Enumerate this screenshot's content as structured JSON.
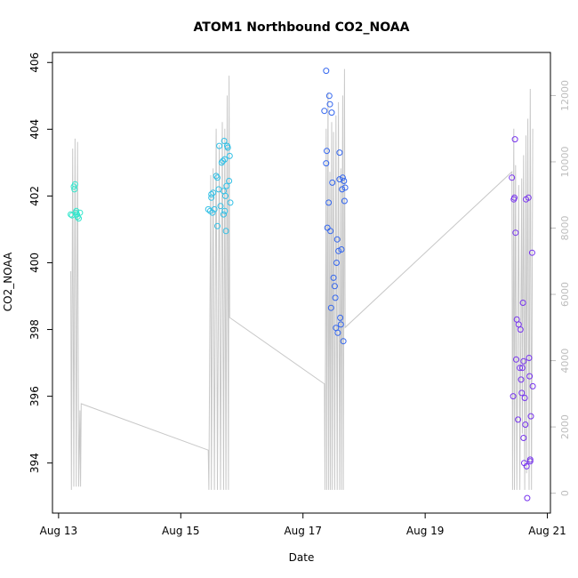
{
  "chart_data": {
    "type": "scatter",
    "title": "ATOM1 Northbound CO2_NOAA",
    "xlabel": "Date",
    "ylabel": "CO2_NOAA",
    "x_unit": "days (August)",
    "xlim": [
      12.9,
      21.05
    ],
    "ylim": [
      392.5,
      406.3
    ],
    "x_ticks": [
      13,
      15,
      17,
      19,
      21
    ],
    "x_tick_labels": [
      "Aug 13",
      "Aug 15",
      "Aug 17",
      "Aug 19",
      "Aug 21"
    ],
    "y_ticks": [
      394,
      396,
      398,
      400,
      402,
      404,
      406
    ],
    "y_tick_labels": [
      "394",
      "396",
      "398",
      "400",
      "402",
      "404",
      "406"
    ],
    "y2_ticks": [
      0,
      2000,
      4000,
      6000,
      8000,
      10000,
      12000
    ],
    "y2_tick_labels": [
      "0",
      "2000",
      "4000",
      "6000",
      "8000",
      "10000",
      "12000"
    ],
    "y2lim": [
      -600,
      13300
    ],
    "grid": false,
    "legend": "none",
    "colors": {
      "group1": "#33e6cc",
      "group2": "#33c0e6",
      "group3": "#3366ee",
      "group4": "#7733ee",
      "altitude_line": "#c8c8c8",
      "right_axis": "#bdbdbd"
    },
    "series": [
      {
        "points": [
          [
            13.2,
            401.45
          ],
          [
            13.22,
            401.42
          ],
          [
            13.25,
            402.28
          ],
          [
            13.26,
            402.2
          ],
          [
            13.27,
            402.35
          ],
          [
            13.28,
            401.5
          ],
          [
            13.29,
            401.55
          ],
          [
            13.31,
            401.38
          ],
          [
            13.33,
            401.33
          ],
          [
            13.35,
            401.5
          ],
          [
            13.3,
            401.45
          ]
        ]
      },
      {
        "points": [
          [
            15.45,
            401.6
          ],
          [
            15.48,
            401.55
          ],
          [
            15.5,
            402.05
          ],
          [
            15.5,
            401.95
          ],
          [
            15.52,
            401.5
          ],
          [
            15.53,
            402.1
          ],
          [
            15.55,
            401.6
          ],
          [
            15.58,
            402.6
          ],
          [
            15.6,
            402.55
          ],
          [
            15.6,
            401.1
          ],
          [
            15.62,
            402.2
          ],
          [
            15.63,
            403.5
          ],
          [
            15.65,
            401.7
          ],
          [
            15.67,
            403.0
          ],
          [
            15.69,
            403.05
          ],
          [
            15.7,
            402.15
          ],
          [
            15.71,
            403.65
          ],
          [
            15.72,
            401.55
          ],
          [
            15.72,
            403.1
          ],
          [
            15.73,
            402.0
          ],
          [
            15.74,
            400.95
          ],
          [
            15.75,
            402.3
          ],
          [
            15.76,
            403.5
          ],
          [
            15.77,
            403.45
          ],
          [
            15.79,
            402.45
          ],
          [
            15.8,
            403.2
          ],
          [
            15.81,
            401.8
          ],
          [
            15.7,
            401.45
          ]
        ]
      },
      {
        "points": [
          [
            17.35,
            404.55
          ],
          [
            17.38,
            405.75
          ],
          [
            17.38,
            402.98
          ],
          [
            17.39,
            403.35
          ],
          [
            17.4,
            401.05
          ],
          [
            17.42,
            401.8
          ],
          [
            17.43,
            405.0
          ],
          [
            17.44,
            404.75
          ],
          [
            17.45,
            400.95
          ],
          [
            17.46,
            398.65
          ],
          [
            17.47,
            404.5
          ],
          [
            17.48,
            402.4
          ],
          [
            17.5,
            399.55
          ],
          [
            17.52,
            399.3
          ],
          [
            17.53,
            398.95
          ],
          [
            17.54,
            398.05
          ],
          [
            17.55,
            400.0
          ],
          [
            17.56,
            400.7
          ],
          [
            17.57,
            397.9
          ],
          [
            17.58,
            400.35
          ],
          [
            17.6,
            402.5
          ],
          [
            17.6,
            403.3
          ],
          [
            17.61,
            398.35
          ],
          [
            17.62,
            398.15
          ],
          [
            17.63,
            400.4
          ],
          [
            17.64,
            402.2
          ],
          [
            17.65,
            402.55
          ],
          [
            17.66,
            397.65
          ],
          [
            17.67,
            402.45
          ],
          [
            17.68,
            401.85
          ],
          [
            17.69,
            402.25
          ]
        ]
      },
      {
        "points": [
          [
            20.42,
            402.55
          ],
          [
            20.44,
            396.0
          ],
          [
            20.45,
            401.9
          ],
          [
            20.46,
            401.95
          ],
          [
            20.47,
            403.7
          ],
          [
            20.48,
            400.9
          ],
          [
            20.49,
            397.1
          ],
          [
            20.5,
            398.3
          ],
          [
            20.52,
            395.3
          ],
          [
            20.53,
            398.15
          ],
          [
            20.55,
            396.85
          ],
          [
            20.56,
            398.0
          ],
          [
            20.57,
            396.5
          ],
          [
            20.58,
            396.1
          ],
          [
            20.59,
            396.85
          ],
          [
            20.6,
            398.8
          ],
          [
            20.61,
            397.05
          ],
          [
            20.61,
            394.75
          ],
          [
            20.62,
            394.0
          ],
          [
            20.63,
            395.95
          ],
          [
            20.64,
            395.15
          ],
          [
            20.65,
            401.9
          ],
          [
            20.66,
            393.9
          ],
          [
            20.67,
            392.95
          ],
          [
            20.69,
            401.95
          ],
          [
            20.7,
            397.15
          ],
          [
            20.71,
            396.6
          ],
          [
            20.72,
            394.05
          ],
          [
            20.73,
            395.4
          ],
          [
            20.75,
            400.3
          ],
          [
            20.76,
            396.3
          ],
          [
            20.72,
            394.1
          ]
        ]
      }
    ],
    "altitude_series": {
      "axis": "right",
      "points": [
        [
          13.2,
          6700
        ],
        [
          13.21,
          100
        ],
        [
          13.23,
          10400
        ],
        [
          13.25,
          200
        ],
        [
          13.27,
          10700
        ],
        [
          13.29,
          200
        ],
        [
          13.31,
          10600
        ],
        [
          13.33,
          200
        ],
        [
          13.35,
          2500
        ],
        [
          13.36,
          200
        ],
        [
          13.37,
          2700
        ],
        [
          15.45,
          1300
        ],
        [
          15.46,
          100
        ],
        [
          15.49,
          9600
        ],
        [
          15.5,
          100
        ],
        [
          15.53,
          9800
        ],
        [
          15.55,
          100
        ],
        [
          15.58,
          11000
        ],
        [
          15.6,
          100
        ],
        [
          15.63,
          10500
        ],
        [
          15.65,
          100
        ],
        [
          15.68,
          11200
        ],
        [
          15.7,
          100
        ],
        [
          15.72,
          11000
        ],
        [
          15.74,
          100
        ],
        [
          15.76,
          12000
        ],
        [
          15.78,
          100
        ],
        [
          15.79,
          12600
        ],
        [
          15.8,
          5300
        ],
        [
          17.35,
          3300
        ],
        [
          17.36,
          100
        ],
        [
          17.38,
          11000
        ],
        [
          17.39,
          100
        ],
        [
          17.41,
          12100
        ],
        [
          17.42,
          100
        ],
        [
          17.44,
          9700
        ],
        [
          17.45,
          100
        ],
        [
          17.47,
          11200
        ],
        [
          17.48,
          100
        ],
        [
          17.5,
          10900
        ],
        [
          17.52,
          100
        ],
        [
          17.54,
          11400
        ],
        [
          17.56,
          100
        ],
        [
          17.58,
          11800
        ],
        [
          17.6,
          100
        ],
        [
          17.62,
          9800
        ],
        [
          17.63,
          100
        ],
        [
          17.65,
          12000
        ],
        [
          17.66,
          100
        ],
        [
          17.68,
          12800
        ],
        [
          17.69,
          5000
        ],
        [
          20.42,
          9700
        ],
        [
          20.43,
          100
        ],
        [
          20.45,
          11000
        ],
        [
          20.46,
          100
        ],
        [
          20.48,
          9900
        ],
        [
          20.5,
          100
        ],
        [
          20.53,
          9300
        ],
        [
          20.55,
          100
        ],
        [
          20.58,
          9500
        ],
        [
          20.59,
          1800
        ],
        [
          20.61,
          10200
        ],
        [
          20.63,
          100
        ],
        [
          20.65,
          10800
        ],
        [
          20.66,
          600
        ],
        [
          20.68,
          11300
        ],
        [
          20.7,
          100
        ],
        [
          20.72,
          12200
        ],
        [
          20.74,
          100
        ],
        [
          20.76,
          11000
        ]
      ]
    }
  }
}
